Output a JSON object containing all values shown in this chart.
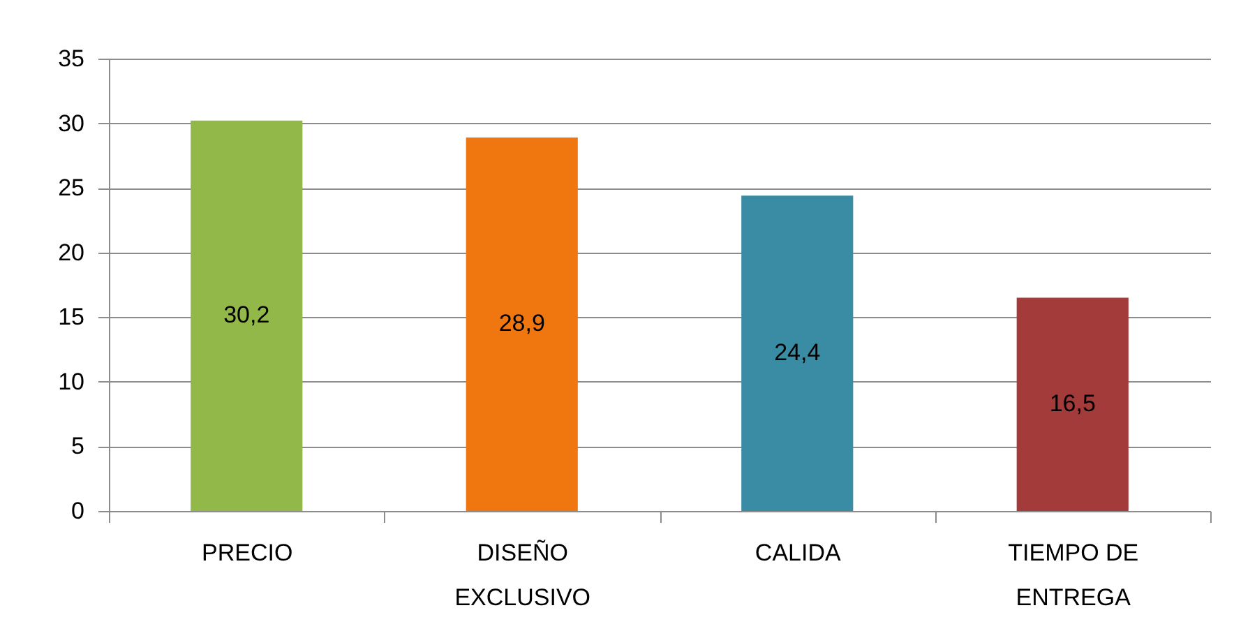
{
  "chart_data": {
    "type": "bar",
    "categories": [
      "PRECIO",
      "DISEÑO EXCLUSIVO",
      "CALIDA",
      "TIEMPO DE ENTREGA"
    ],
    "values": [
      30.2,
      28.9,
      24.4,
      16.5
    ],
    "colors": [
      "#92b84a",
      "#f0760f",
      "#3a8ca5",
      "#a23b3a"
    ],
    "value_labels": [
      "30,2",
      "28,9",
      "24,4",
      "16,5"
    ],
    "ylim": [
      0,
      35
    ],
    "yticks": [
      0,
      5,
      10,
      15,
      20,
      25,
      30,
      35
    ],
    "grid": "y"
  }
}
